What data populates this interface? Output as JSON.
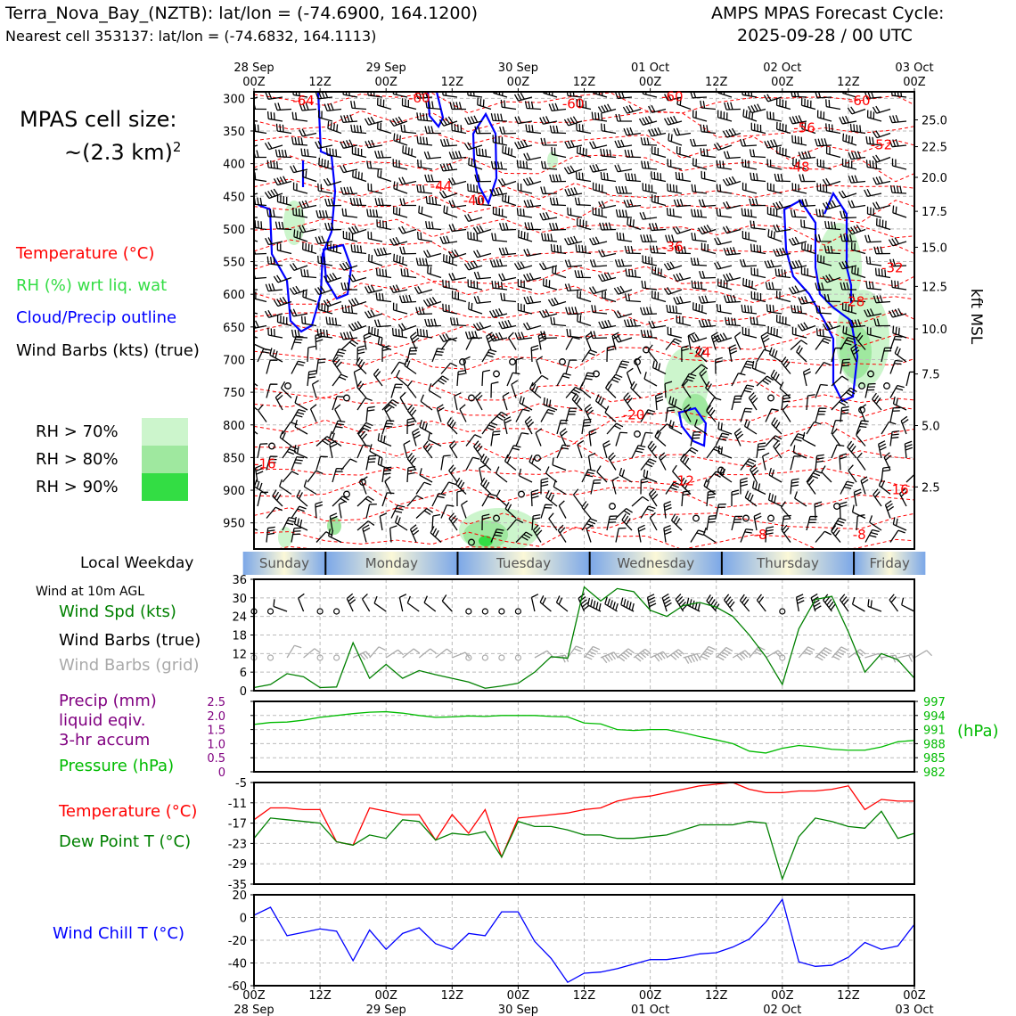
{
  "header": {
    "station_line": "Terra_Nova_Bay_(NZTB): lat/lon = (-74.6900, 164.1200)",
    "cell_line": "Nearest cell 353137: lat/lon = (-74.6832, 164.1113)",
    "cycle_line1": "AMPS MPAS Forecast Cycle:",
    "cycle_line2": "2025-09-28 / 00 UTC"
  },
  "sidebar": {
    "cell_size_line1": "MPAS cell size:",
    "cell_size_line2": "~(2.3 km)",
    "cell_size_sup": "2",
    "legend_temperature": "Temperature (°C)",
    "legend_rh": "RH (%) wrt liq. wat",
    "legend_cloud": "Cloud/Precip outline",
    "legend_wind": "Wind Barbs (kts) (true)",
    "rh_levels": [
      {
        "label": "RH > 70%",
        "color": "#ccf5cc"
      },
      {
        "label": "RH > 80%",
        "color": "#9fe89f"
      },
      {
        "label": "RH > 90%",
        "color": "#33dd44"
      }
    ],
    "local_weekday": "Local Weekday",
    "wind_10m": "Wind at 10m AGL",
    "wind_spd": "Wind Spd (kts)",
    "wind_barbs_true": "Wind Barbs (true)",
    "wind_barbs_grid": "Wind Barbs (grid)",
    "precip1": "Precip (mm)",
    "precip2": "liquid eqiv.",
    "precip3": "3-hr accum",
    "pressure": "Pressure (hPa)",
    "temperature": "Temperature (°C)",
    "dewpoint": "Dew Point T (°C)",
    "windchill": "Wind Chill T (°C)"
  },
  "colors": {
    "temperature": "#ff0000",
    "rh_text": "#33dd44",
    "cloud": "#0000ff",
    "wind_speed": "#008000",
    "grid_barbs": "#aaaaaa",
    "precip": "#800080",
    "pressure": "#00bb00",
    "dewpoint": "#008000",
    "windchill": "#0000ff",
    "weekday_blue": "#7ba7e8",
    "weekday_cream": "#fbf8d8"
  },
  "chart_data": [
    {
      "type": "area",
      "name": "time-height cross section",
      "x_ticks_top": [
        {
          "h": 0,
          "top": "28 Sep",
          "bottom": "00Z"
        },
        {
          "h": 12,
          "top": "",
          "bottom": "12Z"
        },
        {
          "h": 24,
          "top": "29 Sep",
          "bottom": "00Z"
        },
        {
          "h": 36,
          "top": "",
          "bottom": "12Z"
        },
        {
          "h": 48,
          "top": "30 Sep",
          "bottom": "00Z"
        },
        {
          "h": 60,
          "top": "",
          "bottom": "12Z"
        },
        {
          "h": 72,
          "top": "01 Oct",
          "bottom": "00Z"
        },
        {
          "h": 84,
          "top": "",
          "bottom": "12Z"
        },
        {
          "h": 96,
          "top": "02 Oct",
          "bottom": "00Z"
        },
        {
          "h": 108,
          "top": "",
          "bottom": "12Z"
        },
        {
          "h": 120,
          "top": "03 Oct",
          "bottom": "00Z"
        }
      ],
      "x_range_hours": [
        0,
        120
      ],
      "pressure_levels": [
        300,
        350,
        400,
        450,
        500,
        550,
        600,
        650,
        700,
        750,
        800,
        850,
        900,
        950
      ],
      "pressure_range": [
        290,
        990
      ],
      "kft_ticks": [
        {
          "p": 333,
          "label": "25.0"
        },
        {
          "p": 374,
          "label": "22.5"
        },
        {
          "p": 421,
          "label": "20.0"
        },
        {
          "p": 473,
          "label": "17.5"
        },
        {
          "p": 528,
          "label": "15.0"
        },
        {
          "p": 588,
          "label": "12.5"
        },
        {
          "p": 653,
          "label": "10.0"
        },
        {
          "p": 722,
          "label": "7.5"
        },
        {
          "p": 801,
          "label": "5.0"
        },
        {
          "p": 895,
          "label": "2.5"
        }
      ],
      "right_axis_label": "kft MSL",
      "temperature_labels": [
        {
          "h": 9,
          "p": 302,
          "text": "-64"
        },
        {
          "h": 30,
          "p": 298,
          "text": "-60"
        },
        {
          "h": 58,
          "p": 307,
          "text": "-60"
        },
        {
          "h": 76,
          "p": 296,
          "text": "-60"
        },
        {
          "h": 110,
          "p": 302,
          "text": "-60"
        },
        {
          "h": 100,
          "p": 344,
          "text": "-56"
        },
        {
          "h": 114,
          "p": 370,
          "text": "-52"
        },
        {
          "h": 99,
          "p": 404,
          "text": "-48"
        },
        {
          "h": 34,
          "p": 433,
          "text": "-44"
        },
        {
          "h": 40,
          "p": 455,
          "text": "-40"
        },
        {
          "h": 76,
          "p": 526,
          "text": "-36"
        },
        {
          "h": 116,
          "p": 558,
          "text": "-32"
        },
        {
          "h": 109,
          "p": 610,
          "text": "-28"
        },
        {
          "h": 81,
          "p": 688,
          "text": "-24"
        },
        {
          "h": 69,
          "p": 783,
          "text": "-20"
        },
        {
          "h": 2,
          "p": 858,
          "text": "-16"
        },
        {
          "h": 117,
          "p": 898,
          "text": "-16"
        },
        {
          "h": 78,
          "p": 884,
          "text": "-12"
        },
        {
          "h": 92,
          "p": 967,
          "text": "-8"
        },
        {
          "h": 110,
          "p": 967,
          "text": "-8"
        }
      ]
    },
    {
      "type": "line",
      "name": "wind speed 10m",
      "ylim": [
        0,
        36
      ],
      "yticks": [
        0,
        6,
        12,
        18,
        24,
        30,
        36
      ],
      "x_hours": [
        0,
        3,
        6,
        9,
        12,
        15,
        18,
        21,
        24,
        27,
        30,
        33,
        36,
        39,
        42,
        45,
        48,
        51,
        54,
        57,
        60,
        63,
        66,
        69,
        72,
        75,
        78,
        81,
        84,
        87,
        90,
        93,
        96,
        99,
        102,
        105,
        108,
        111,
        114,
        117,
        120
      ],
      "values": [
        1,
        2,
        5.5,
        4.5,
        1,
        1.2,
        15.5,
        4,
        8.5,
        4,
        6.5,
        5.2,
        4,
        2.8,
        0.8,
        1.5,
        2.4,
        6,
        11,
        10.5,
        33.5,
        29,
        33,
        32,
        26,
        24,
        27.5,
        28.5,
        27,
        24,
        18,
        11,
        2,
        20,
        29.5,
        30.5,
        19,
        6,
        12,
        10,
        4
      ],
      "wind_labels": [
        "Wind Spd (kts)"
      ]
    },
    {
      "type": "line",
      "name": "pressure",
      "left_ticks": [
        0,
        0.5,
        1.0,
        1.5,
        2.0,
        2.5
      ],
      "right_ticks": [
        982,
        985,
        988,
        991,
        994,
        997
      ],
      "ylim_pressure": [
        982,
        997
      ],
      "x_hours": [
        0,
        3,
        6,
        9,
        12,
        15,
        18,
        21,
        24,
        27,
        30,
        33,
        36,
        39,
        42,
        45,
        48,
        51,
        54,
        57,
        60,
        63,
        66,
        69,
        72,
        75,
        78,
        81,
        84,
        87,
        90,
        93,
        96,
        99,
        102,
        105,
        108,
        111,
        114,
        117,
        120
      ],
      "values": [
        992.1,
        992.5,
        992.6,
        993.0,
        993.6,
        994.0,
        994.4,
        994.7,
        994.8,
        994.5,
        994.0,
        993.6,
        993.7,
        993.9,
        993.8,
        994.0,
        994.0,
        994.0,
        993.8,
        993.7,
        992.4,
        992.2,
        991.0,
        990.8,
        991.0,
        991.0,
        990.3,
        989.5,
        988.8,
        988.0,
        986.4,
        986.0,
        987.0,
        987.6,
        987.3,
        986.8,
        986.6,
        986.6,
        987.3,
        988.4,
        988.7
      ],
      "precip": []
    },
    {
      "type": "line",
      "name": "temperature and dewpoint",
      "ylim": [
        -35,
        -5
      ],
      "yticks": [
        -35,
        -29,
        -23,
        -17,
        -11,
        -5
      ],
      "x_hours": [
        0,
        3,
        6,
        9,
        12,
        15,
        18,
        21,
        24,
        27,
        30,
        33,
        36,
        39,
        42,
        45,
        48,
        51,
        54,
        57,
        60,
        63,
        66,
        69,
        72,
        75,
        78,
        81,
        84,
        87,
        90,
        93,
        96,
        99,
        102,
        105,
        108,
        111,
        114,
        117,
        120
      ],
      "series": [
        {
          "name": "Temperature (°C)",
          "values": [
            -16,
            -12.5,
            -12.5,
            -13,
            -13,
            -22.5,
            -23.5,
            -12.5,
            -13.5,
            -14.5,
            -14.5,
            -22,
            -14.5,
            -20,
            -13,
            -27,
            -15.5,
            -15,
            -14.5,
            -14,
            -13,
            -12.5,
            -10.5,
            -9.5,
            -9,
            -8,
            -7,
            -6,
            -5.5,
            -5,
            -7,
            -8,
            -8,
            -7.5,
            -7.5,
            -7,
            -6,
            -13,
            -10,
            -10.5,
            -10.5
          ]
        },
        {
          "name": "Dew Point T (°C)",
          "values": [
            -21.5,
            -15.5,
            -16,
            -16.5,
            -17,
            -22.5,
            -23.5,
            -20.5,
            -21.5,
            -16,
            -16.5,
            -22,
            -20,
            -20.5,
            -19.5,
            -27,
            -16.5,
            -18,
            -18,
            -19,
            -20.5,
            -20.5,
            -21.5,
            -21.5,
            -21,
            -20.5,
            -19,
            -17.5,
            -17.5,
            -17.5,
            -16.5,
            -17,
            -33.5,
            -21,
            -15.5,
            -16.5,
            -18,
            -18.5,
            -13.5,
            -21.5,
            -20
          ]
        }
      ]
    },
    {
      "type": "line",
      "name": "wind chill",
      "ylim": [
        -60,
        20
      ],
      "yticks": [
        -60,
        -40,
        -20,
        0,
        20
      ],
      "x_hours": [
        0,
        3,
        6,
        9,
        12,
        15,
        18,
        21,
        24,
        27,
        30,
        33,
        36,
        39,
        42,
        45,
        48,
        51,
        54,
        57,
        60,
        63,
        66,
        69,
        72,
        75,
        78,
        81,
        84,
        87,
        90,
        93,
        96,
        99,
        102,
        105,
        108,
        111,
        114,
        117,
        120
      ],
      "values": [
        2,
        9,
        -16,
        -13,
        -10,
        -12,
        -38,
        -11,
        -28,
        -14,
        -9,
        -23,
        -28,
        -14,
        -16,
        5,
        5,
        -21,
        -36,
        -57,
        -49,
        -48,
        -45,
        -41,
        -37,
        -37,
        -35,
        -32,
        -31,
        -26,
        -19,
        -4,
        16,
        -39,
        -43,
        -42,
        -35,
        -22,
        -28,
        -25,
        -6
      ],
      "bottom_ticks": [
        {
          "h": 0,
          "top": "00Z",
          "bottom": "28 Sep"
        },
        {
          "h": 12,
          "top": "12Z",
          "bottom": ""
        },
        {
          "h": 24,
          "top": "00Z",
          "bottom": "29 Sep"
        },
        {
          "h": 36,
          "top": "12Z",
          "bottom": ""
        },
        {
          "h": 48,
          "top": "00Z",
          "bottom": "30 Sep"
        },
        {
          "h": 60,
          "top": "12Z",
          "bottom": ""
        },
        {
          "h": 72,
          "top": "00Z",
          "bottom": "01 Oct"
        },
        {
          "h": 84,
          "top": "12Z",
          "bottom": ""
        },
        {
          "h": 96,
          "top": "00Z",
          "bottom": "02 Oct"
        },
        {
          "h": 108,
          "top": "12Z",
          "bottom": ""
        },
        {
          "h": 120,
          "top": "00Z",
          "bottom": "03 Oct"
        }
      ]
    }
  ],
  "weekdays": [
    {
      "name": "Sunday",
      "start_h": -2,
      "end_h": 13
    },
    {
      "name": "Monday",
      "start_h": 13,
      "end_h": 37
    },
    {
      "name": "Tuesday",
      "start_h": 37,
      "end_h": 61
    },
    {
      "name": "Wednesday",
      "start_h": 61,
      "end_h": 85
    },
    {
      "name": "Thursday",
      "start_h": 85,
      "end_h": 109
    },
    {
      "name": "Friday",
      "start_h": 109,
      "end_h": 122
    }
  ]
}
